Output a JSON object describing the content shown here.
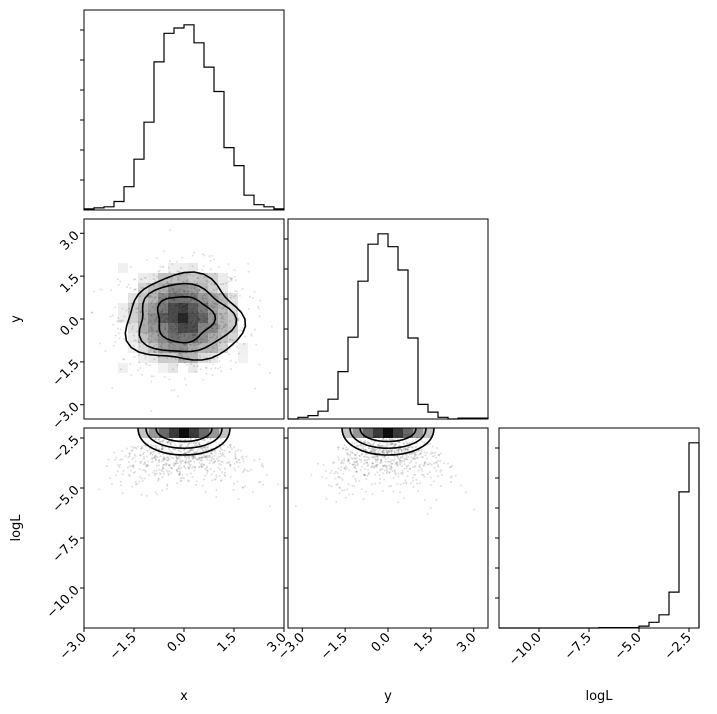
{
  "chart_data": {
    "type": "corner",
    "parameters": [
      "x",
      "y",
      "logL"
    ],
    "axis_labels": {
      "x": "x",
      "y": "y",
      "logL": "logL"
    },
    "ranges": {
      "x": [
        -3.0,
        3.0
      ],
      "y": [
        -3.5,
        3.5
      ],
      "logL": [
        -12.0,
        -2.0
      ]
    },
    "ticks": {
      "x": {
        "values": [
          -3.0,
          -1.5,
          0.0,
          1.5,
          3.0
        ],
        "labels": [
          "−3.0",
          "−1.5",
          "0.0",
          "1.5",
          "3.0"
        ]
      },
      "y": {
        "values": [
          -3.0,
          -1.5,
          0.0,
          1.5,
          3.0
        ],
        "labels": [
          "−3.0",
          "−1.5",
          "0.0",
          "1.5",
          "3.0"
        ]
      },
      "logL": {
        "values": [
          -10.0,
          -7.5,
          -5.0,
          -2.5
        ],
        "labels": [
          "−10.0",
          "−7.5",
          "−5.0",
          "−2.5"
        ]
      }
    },
    "histograms": {
      "x": {
        "bin_edges": [
          -3.0,
          -2.7,
          -2.4,
          -2.1,
          -1.8,
          -1.5,
          -1.2,
          -0.9,
          -0.6,
          -0.3,
          0.0,
          0.3,
          0.6,
          0.9,
          1.2,
          1.5,
          1.8,
          2.1,
          2.4,
          2.7,
          3.0
        ],
        "counts": [
          1,
          2,
          3,
          8,
          22,
          48,
          83,
          140,
          167,
          172,
          175,
          158,
          135,
          112,
          59,
          42,
          14,
          5,
          3,
          1
        ]
      },
      "y": {
        "bin_edges": [
          -3.5,
          -3.15,
          -2.8,
          -2.45,
          -2.1,
          -1.75,
          -1.4,
          -1.05,
          -0.7,
          -0.35,
          0.0,
          0.35,
          0.7,
          1.05,
          1.4,
          1.75,
          2.1,
          2.45,
          2.8,
          3.15,
          3.5
        ],
        "counts": [
          0,
          2,
          4,
          9,
          23,
          55,
          95,
          160,
          203,
          215,
          200,
          173,
          94,
          17,
          8,
          2,
          0,
          1,
          1,
          1
        ]
      },
      "logL": {
        "bin_edges": [
          -12.0,
          -11.5,
          -11.0,
          -10.5,
          -10.0,
          -9.5,
          -9.0,
          -8.5,
          -8.0,
          -7.5,
          -7.0,
          -6.5,
          -6.0,
          -5.5,
          -5.0,
          -4.5,
          -4.0,
          -3.5,
          -3.0,
          -2.5,
          -2.0
        ],
        "counts": [
          0,
          0,
          0,
          0,
          0,
          0,
          0,
          0,
          0,
          0,
          1,
          1,
          1,
          1,
          5,
          15,
          35,
          95,
          360,
          490
        ]
      }
    },
    "density_2d": {
      "x_y": {
        "center": [
          0.0,
          0.0
        ],
        "sigma": [
          0.85,
          0.8
        ],
        "levels_sigma": [
          0.55,
          1.15,
          1.7,
          2.15
        ]
      },
      "x_logL": {
        "center_x": 0.0,
        "peak_logL": -2.2,
        "scale": 0.08
      },
      "y_logL": {
        "center_x": 0.0,
        "peak_logL": -2.2,
        "scale": 0.08
      }
    }
  }
}
